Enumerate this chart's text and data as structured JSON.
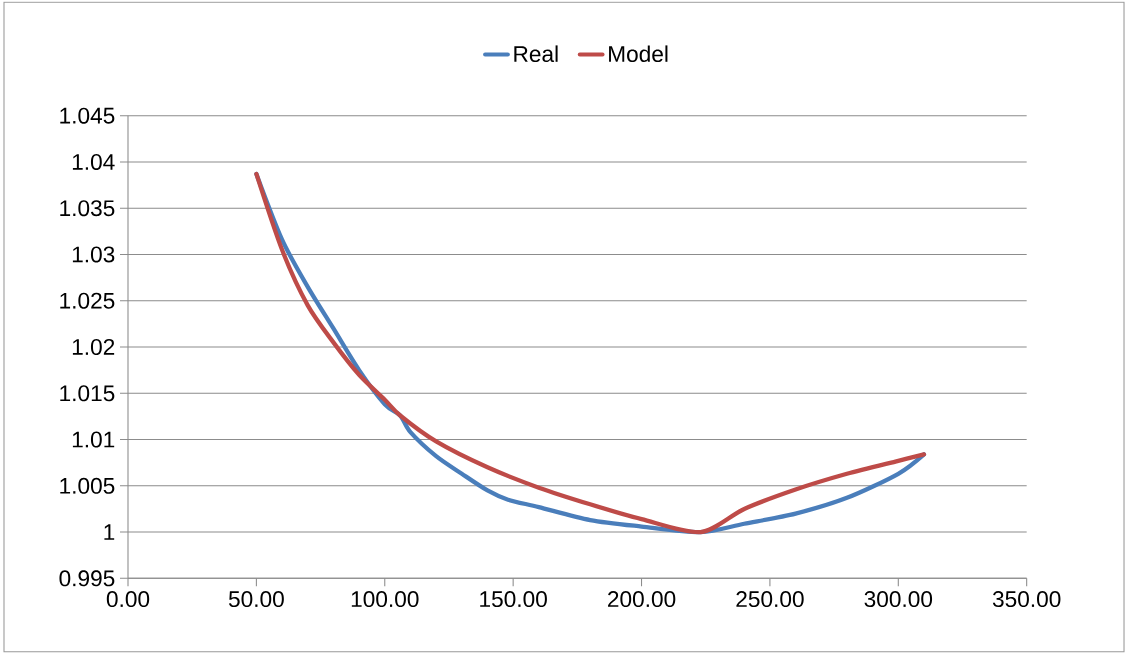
{
  "chart_data": {
    "type": "line",
    "xlim": [
      0,
      350
    ],
    "xticks": [
      {
        "value": 0,
        "label": "0.00"
      },
      {
        "value": 50,
        "label": "50.00"
      },
      {
        "value": 100,
        "label": "100.00"
      },
      {
        "value": 150,
        "label": "150.00"
      },
      {
        "value": 200,
        "label": "200.00"
      },
      {
        "value": 250,
        "label": "250.00"
      },
      {
        "value": 300,
        "label": "300.00"
      },
      {
        "value": 350,
        "label": "350.00"
      }
    ],
    "ylim": [
      0.995,
      1.045
    ],
    "yticks": [
      0.995,
      1,
      1.005,
      1.01,
      1.015,
      1.02,
      1.025,
      1.03,
      1.035,
      1.04,
      1.045
    ],
    "grid": "y",
    "legend": "top",
    "marker": "none",
    "series": [
      {
        "name": "Real",
        "color": "#4a7ebb",
        "x": [
          50,
          60,
          70,
          80,
          90,
          100,
          106,
          110,
          120,
          130,
          140,
          148,
          160,
          180,
          200,
          223,
          240,
          260,
          280,
          300,
          310
        ],
        "values": [
          1.0387,
          1.0316,
          1.0265,
          1.022,
          1.0175,
          1.0138,
          1.0126,
          1.0108,
          1.0082,
          1.0063,
          1.0045,
          1.0035,
          1.0027,
          1.0013,
          1.0006,
          1.0,
          1.0009,
          1.002,
          1.0037,
          1.0063,
          1.0084
        ]
      },
      {
        "name": "Model",
        "color": "#be4b48",
        "x": [
          50,
          60,
          70,
          80,
          90,
          100,
          106,
          120,
          140,
          160,
          180,
          200,
          223,
          240,
          260,
          280,
          300,
          310
        ],
        "values": [
          1.0387,
          1.0305,
          1.0245,
          1.0205,
          1.017,
          1.0143,
          1.0126,
          1.0098,
          1.007,
          1.0048,
          1.003,
          1.0014,
          1.0,
          1.0025,
          1.0046,
          1.0063,
          1.0077,
          1.0084
        ]
      }
    ]
  }
}
